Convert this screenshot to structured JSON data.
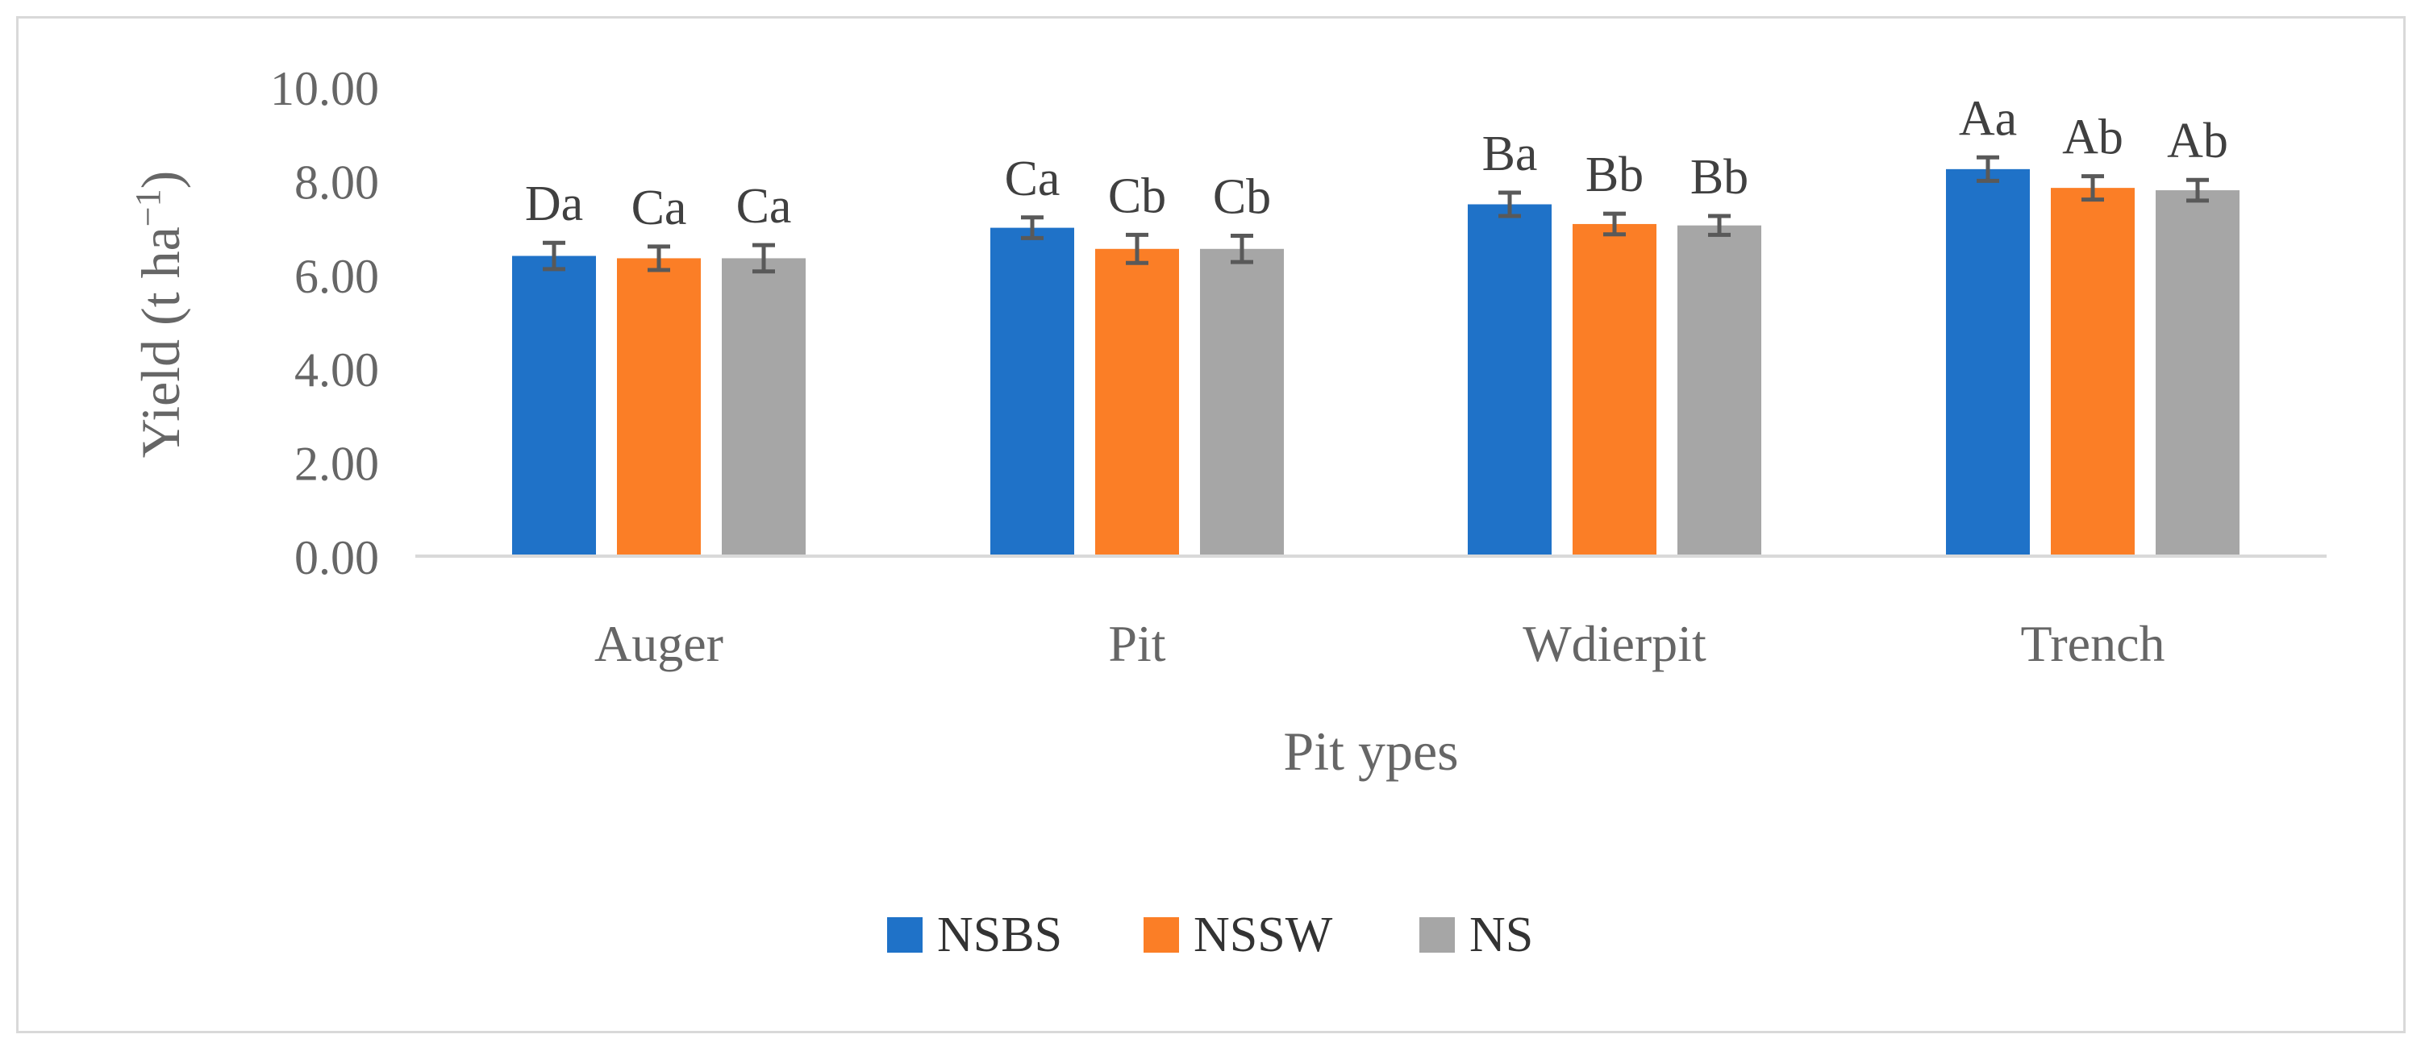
{
  "chart_data": {
    "type": "bar",
    "title": "",
    "xlabel": "Pit ypes",
    "ylabel": "Yield (t ha",
    "ylabel_superscript": "−1",
    "ylabel_close": ")",
    "categories": [
      "Auger",
      "Pit",
      "Wdierpit",
      "Trench"
    ],
    "ylim": [
      0,
      10
    ],
    "yticks": [
      "0.00",
      "2.00",
      "4.00",
      "6.00",
      "8.00",
      "10.00"
    ],
    "ytick_values": [
      0,
      2,
      4,
      6,
      8,
      10
    ],
    "grid": false,
    "legend_position": "bottom",
    "series": [
      {
        "name": "NSBS",
        "color": "#1f72c8",
        "values": [
          6.4,
          7.0,
          7.5,
          8.25
        ],
        "errors": [
          0.28,
          0.22,
          0.25,
          0.25
        ],
        "labels": [
          "Da",
          "Ca",
          "Ba",
          "Aa"
        ]
      },
      {
        "name": "NSSW",
        "color": "#fb7e26",
        "values": [
          6.35,
          6.55,
          7.08,
          7.85
        ],
        "errors": [
          0.25,
          0.3,
          0.22,
          0.25
        ],
        "labels": [
          "Ca",
          "Cb",
          "Bb",
          "Ab"
        ]
      },
      {
        "name": "NS",
        "color": "#a6a6a6",
        "values": [
          6.35,
          6.55,
          7.05,
          7.8
        ],
        "errors": [
          0.28,
          0.28,
          0.2,
          0.22
        ],
        "labels": [
          "Ca",
          "Cb",
          "Bb",
          "Ab"
        ]
      }
    ]
  }
}
